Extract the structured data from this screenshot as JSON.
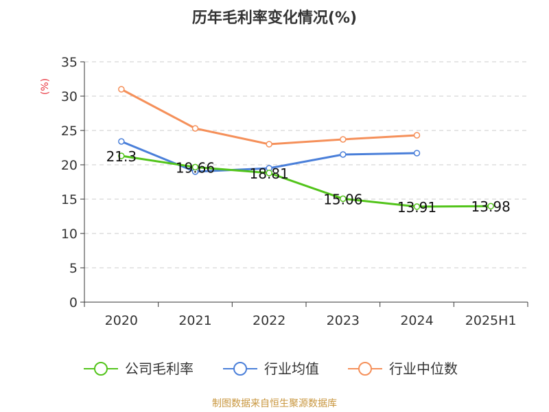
{
  "chart_data": {
    "type": "line",
    "title": "历年毛利率变化情况(%)",
    "unit_label": "(%)",
    "categories": [
      "2020",
      "2021",
      "2022",
      "2023",
      "2024",
      "2025H1"
    ],
    "ylim": [
      0,
      35
    ],
    "yticks": [
      0,
      5,
      10,
      15,
      20,
      25,
      30,
      35
    ],
    "grid": true,
    "legend_position": "bottom",
    "series": [
      {
        "name": "公司毛利率",
        "color": "#52c41a",
        "values": [
          21.3,
          19.66,
          18.81,
          15.06,
          13.91,
          13.98
        ],
        "labels": [
          "21.3",
          "19.66",
          "18.81",
          "15.06",
          "13.91",
          "13.98"
        ]
      },
      {
        "name": "行业均值",
        "color": "#4a7fd9",
        "values": [
          23.4,
          19.0,
          19.5,
          21.5,
          21.7,
          null
        ]
      },
      {
        "name": "行业中位数",
        "color": "#f5905a",
        "values": [
          31.0,
          25.3,
          23.0,
          23.7,
          24.3,
          null
        ]
      }
    ]
  },
  "source": "制图数据来自恒生聚源数据库"
}
